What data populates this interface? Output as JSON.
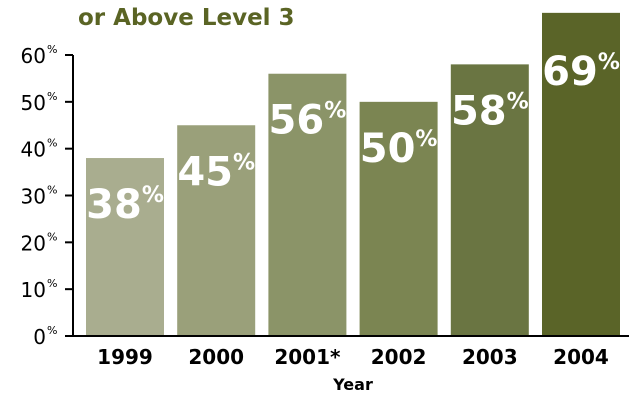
{
  "chart_data": {
    "type": "bar",
    "title": "or Above Level 3",
    "xlabel": "Year",
    "ylabel": "",
    "categories": [
      "1999",
      "2000",
      "2001*",
      "2002",
      "2003",
      "2004"
    ],
    "values": [
      38,
      45,
      56,
      50,
      58,
      69
    ],
    "value_labels": [
      "38",
      "45",
      "56",
      "50",
      "58",
      "69"
    ],
    "value_unit": "%",
    "ylim": [
      0,
      60
    ],
    "yticks": [
      {
        "value": 0,
        "label": "0"
      },
      {
        "value": 10,
        "label": "10"
      },
      {
        "value": 20,
        "label": "20"
      },
      {
        "value": 30,
        "label": "30"
      },
      {
        "value": 40,
        "label": "40"
      },
      {
        "value": 50,
        "label": "50"
      },
      {
        "value": 60,
        "label": "60"
      }
    ],
    "tick_unit": "%",
    "grid": false,
    "bar_colors": [
      "#a9ad8f",
      "#9aa07a",
      "#8b9468",
      "#7b8552",
      "#6a7542",
      "#5a6428"
    ],
    "text_color": "#5a6424",
    "value_label_color": "#ffffff"
  }
}
